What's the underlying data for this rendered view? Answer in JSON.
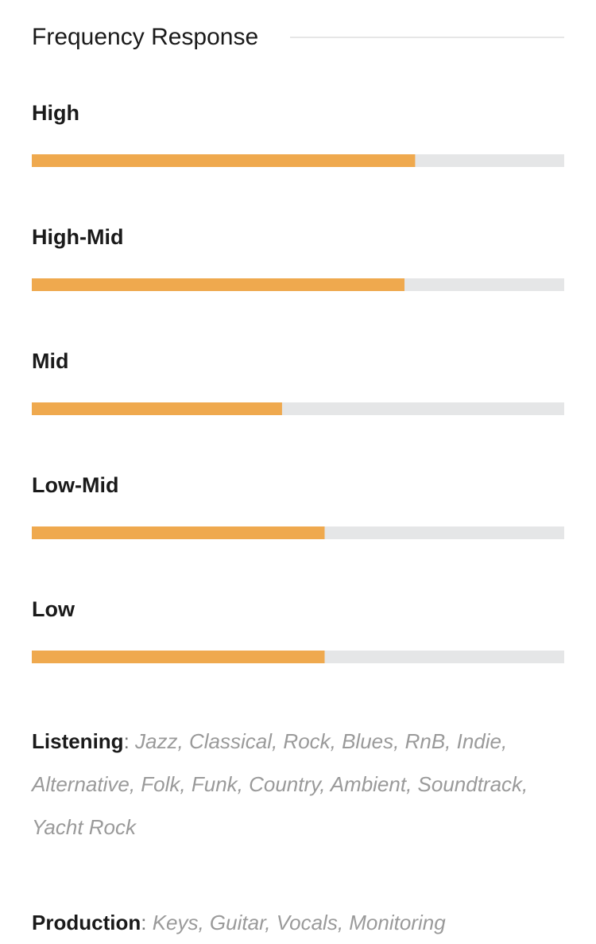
{
  "chart_data": {
    "type": "bar",
    "orientation": "horizontal",
    "title": "Frequency Response",
    "categories": [
      "High",
      "High-Mid",
      "Mid",
      "Low-Mid",
      "Low"
    ],
    "values": [
      72,
      70,
      47,
      55,
      55
    ],
    "xlim": [
      0,
      100
    ],
    "color": "#efa94e",
    "track_color": "#e5e6e7"
  },
  "listening": {
    "label": "Listening",
    "separator": ":",
    "items": "Jazz, Classical, Rock, Blues, RnB, Indie, Alternative, Folk, Funk, Country, Ambient, Soundtrack, Yacht Rock"
  },
  "production": {
    "label": "Production",
    "separator": ":",
    "items": "Keys, Guitar, Vocals, Monitoring"
  }
}
